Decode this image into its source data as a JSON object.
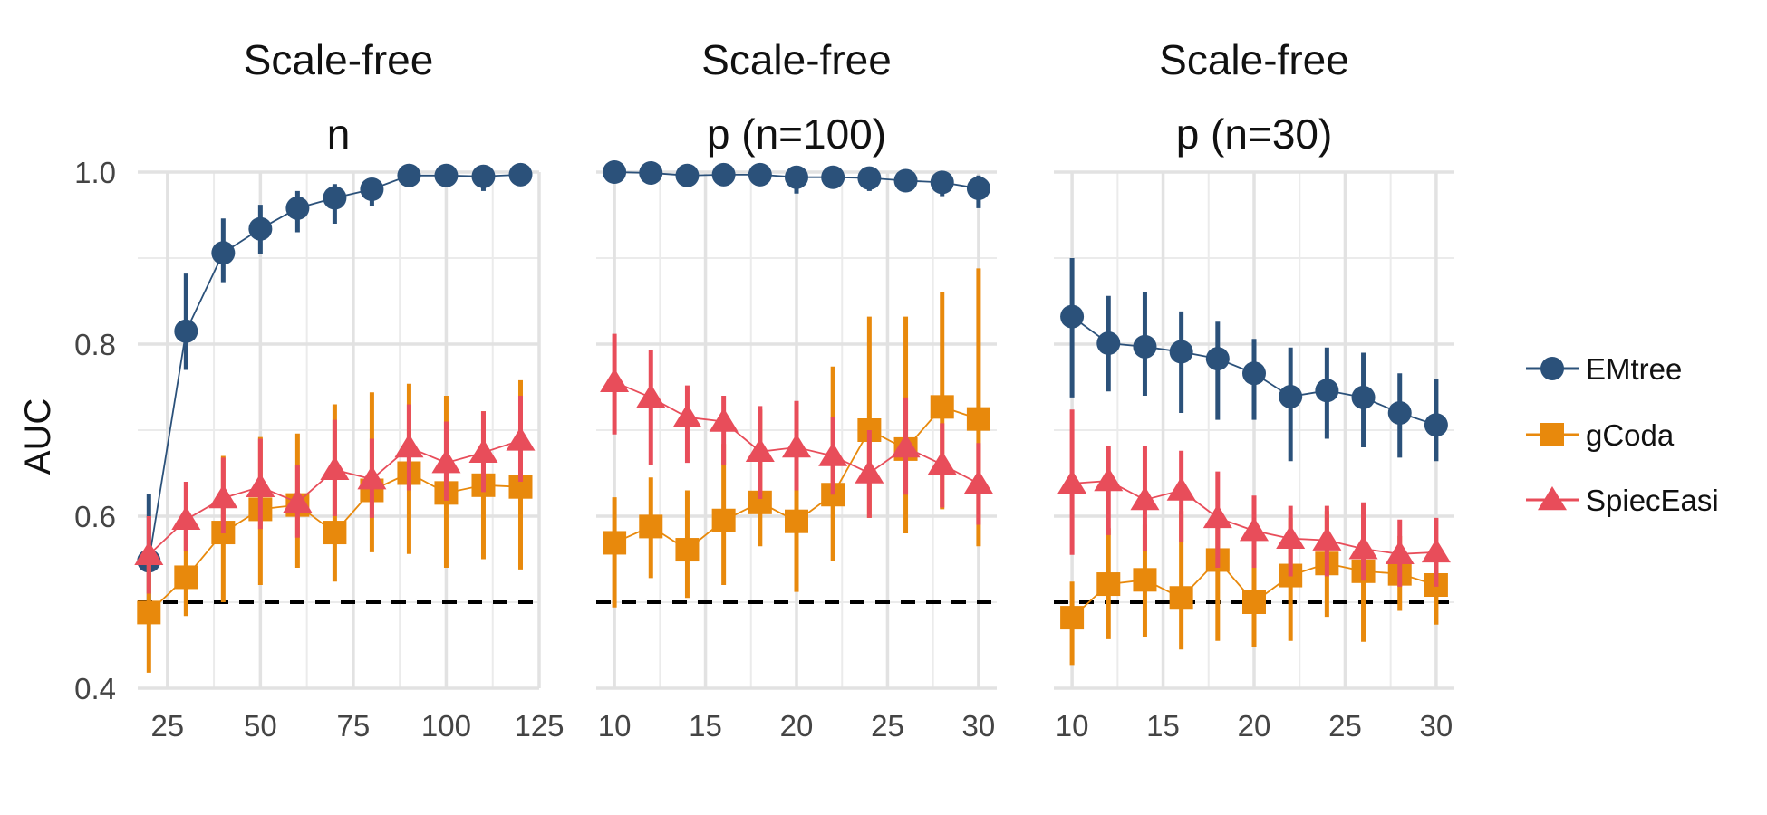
{
  "chart_data": {
    "type": "line",
    "ylabel": "AUC",
    "ylim": [
      0.4,
      1.0
    ],
    "yticks": [
      0.4,
      0.6,
      0.8,
      1.0
    ],
    "y_tick_labels": [
      "0.4",
      "0.6",
      "0.8",
      "1.0"
    ],
    "reference_line": 0.5,
    "series_styles": [
      {
        "name": "EMtree",
        "color": "#2B517A",
        "marker": "circle"
      },
      {
        "name": "gCoda",
        "color": "#E8890C",
        "marker": "square"
      },
      {
        "name": "SpiecEasi",
        "color": "#E84D5A",
        "marker": "triangle"
      }
    ],
    "panels": [
      {
        "title_line1": "Scale-free",
        "title_line2": "n",
        "xlim": [
          17,
          125
        ],
        "xticks": [
          25,
          50,
          75,
          100,
          125
        ],
        "x_tick_labels": [
          "25",
          "50",
          "75",
          "100",
          "125"
        ],
        "x": [
          20,
          30,
          40,
          50,
          60,
          70,
          80,
          90,
          100,
          110,
          120
        ],
        "series": [
          {
            "name": "EMtree",
            "values": [
              0.548,
              0.815,
              0.906,
              0.934,
              0.958,
              0.97,
              0.98,
              0.996,
              0.996,
              0.995,
              0.997
            ],
            "lower": [
              0.49,
              0.77,
              0.872,
              0.905,
              0.93,
              0.94,
              0.96,
              0.99,
              0.99,
              0.978,
              0.99
            ],
            "upper": [
              0.626,
              0.882,
              0.946,
              0.962,
              0.978,
              0.986,
              0.99,
              1.0,
              1.0,
              1.0,
              1.0
            ]
          },
          {
            "name": "gCoda",
            "values": [
              0.488,
              0.529,
              0.581,
              0.608,
              0.613,
              0.581,
              0.63,
              0.65,
              0.627,
              0.636,
              0.634
            ],
            "lower": [
              0.418,
              0.484,
              0.5,
              0.52,
              0.54,
              0.524,
              0.558,
              0.556,
              0.54,
              0.55,
              0.538
            ],
            "upper": [
              0.552,
              0.584,
              0.67,
              0.692,
              0.696,
              0.73,
              0.744,
              0.754,
              0.74,
              0.722,
              0.758
            ]
          },
          {
            "name": "SpiecEasi",
            "values": [
              0.555,
              0.596,
              0.621,
              0.634,
              0.616,
              0.654,
              0.643,
              0.68,
              0.662,
              0.674,
              0.688
            ],
            "lower": [
              0.51,
              0.56,
              0.58,
              0.585,
              0.575,
              0.6,
              0.598,
              0.63,
              0.618,
              0.628,
              0.64
            ],
            "upper": [
              0.6,
              0.64,
              0.668,
              0.69,
              0.66,
              0.712,
              0.69,
              0.73,
              0.71,
              0.722,
              0.74
            ]
          }
        ]
      },
      {
        "title_line1": "Scale-free",
        "title_line2": "p (n=100)",
        "xlim": [
          9,
          31
        ],
        "xticks": [
          10,
          15,
          20,
          25,
          30
        ],
        "x_tick_labels": [
          "10",
          "15",
          "20",
          "25",
          "30"
        ],
        "x": [
          10,
          12,
          14,
          16,
          18,
          20,
          22,
          24,
          26,
          28,
          30
        ],
        "series": [
          {
            "name": "EMtree",
            "values": [
              1.0,
              0.999,
              0.996,
              0.997,
              0.997,
              0.994,
              0.994,
              0.993,
              0.99,
              0.988,
              0.981
            ],
            "lower": [
              0.998,
              0.996,
              0.99,
              0.992,
              0.992,
              0.975,
              0.985,
              0.978,
              0.982,
              0.972,
              0.958
            ],
            "upper": [
              1.0,
              1.0,
              1.0,
              1.0,
              1.0,
              1.0,
              1.0,
              1.0,
              0.996,
              0.998,
              0.996
            ]
          },
          {
            "name": "gCoda",
            "values": [
              0.569,
              0.588,
              0.561,
              0.595,
              0.616,
              0.594,
              0.625,
              0.7,
              0.678,
              0.727,
              0.713
            ],
            "lower": [
              0.494,
              0.528,
              0.505,
              0.52,
              0.565,
              0.512,
              0.548,
              0.598,
              0.58,
              0.608,
              0.565
            ],
            "upper": [
              0.622,
              0.645,
              0.63,
              0.684,
              0.724,
              0.706,
              0.774,
              0.832,
              0.832,
              0.86,
              0.888
            ]
          },
          {
            "name": "SpiecEasi",
            "values": [
              0.756,
              0.738,
              0.715,
              0.71,
              0.675,
              0.68,
              0.67,
              0.65,
              0.68,
              0.66,
              0.638
            ],
            "lower": [
              0.695,
              0.66,
              0.662,
              0.66,
              0.62,
              0.63,
              0.625,
              0.598,
              0.625,
              0.61,
              0.59
            ],
            "upper": [
              0.812,
              0.793,
              0.752,
              0.74,
              0.728,
              0.734,
              0.715,
              0.7,
              0.738,
              0.708,
              0.685
            ]
          }
        ]
      },
      {
        "title_line1": "Scale-free",
        "title_line2": "p (n=30)",
        "xlim": [
          9,
          31
        ],
        "xticks": [
          10,
          15,
          20,
          25,
          30
        ],
        "x_tick_labels": [
          "10",
          "15",
          "20",
          "25",
          "30"
        ],
        "x": [
          10,
          12,
          14,
          16,
          18,
          20,
          22,
          24,
          26,
          28,
          30
        ],
        "series": [
          {
            "name": "EMtree",
            "values": [
              0.832,
              0.801,
              0.797,
              0.791,
              0.783,
              0.766,
              0.739,
              0.746,
              0.738,
              0.72,
              0.706
            ],
            "lower": [
              0.738,
              0.745,
              0.74,
              0.72,
              0.712,
              0.712,
              0.664,
              0.69,
              0.68,
              0.668,
              0.664
            ],
            "upper": [
              0.9,
              0.856,
              0.86,
              0.838,
              0.826,
              0.806,
              0.796,
              0.796,
              0.79,
              0.766,
              0.76
            ]
          },
          {
            "name": "gCoda",
            "values": [
              0.482,
              0.521,
              0.526,
              0.505,
              0.549,
              0.5,
              0.531,
              0.545,
              0.536,
              0.533,
              0.52
            ],
            "lower": [
              0.427,
              0.457,
              0.46,
              0.445,
              0.455,
              0.448,
              0.455,
              0.483,
              0.454,
              0.49,
              0.474
            ],
            "upper": [
              0.524,
              0.586,
              0.59,
              0.606,
              0.6,
              0.555,
              0.598,
              0.606,
              0.614,
              0.577,
              0.568
            ]
          },
          {
            "name": "SpiecEasi",
            "values": [
              0.638,
              0.641,
              0.619,
              0.63,
              0.598,
              0.583,
              0.574,
              0.572,
              0.562,
              0.556,
              0.558
            ],
            "lower": [
              0.555,
              0.578,
              0.56,
              0.57,
              0.54,
              0.54,
              0.53,
              0.53,
              0.525,
              0.518,
              0.518
            ],
            "upper": [
              0.724,
              0.682,
              0.682,
              0.676,
              0.652,
              0.624,
              0.612,
              0.612,
              0.616,
              0.596,
              0.598
            ]
          }
        ]
      }
    ],
    "legend": {
      "position": "right",
      "entries": [
        "EMtree",
        "gCoda",
        "SpiecEasi"
      ]
    }
  }
}
